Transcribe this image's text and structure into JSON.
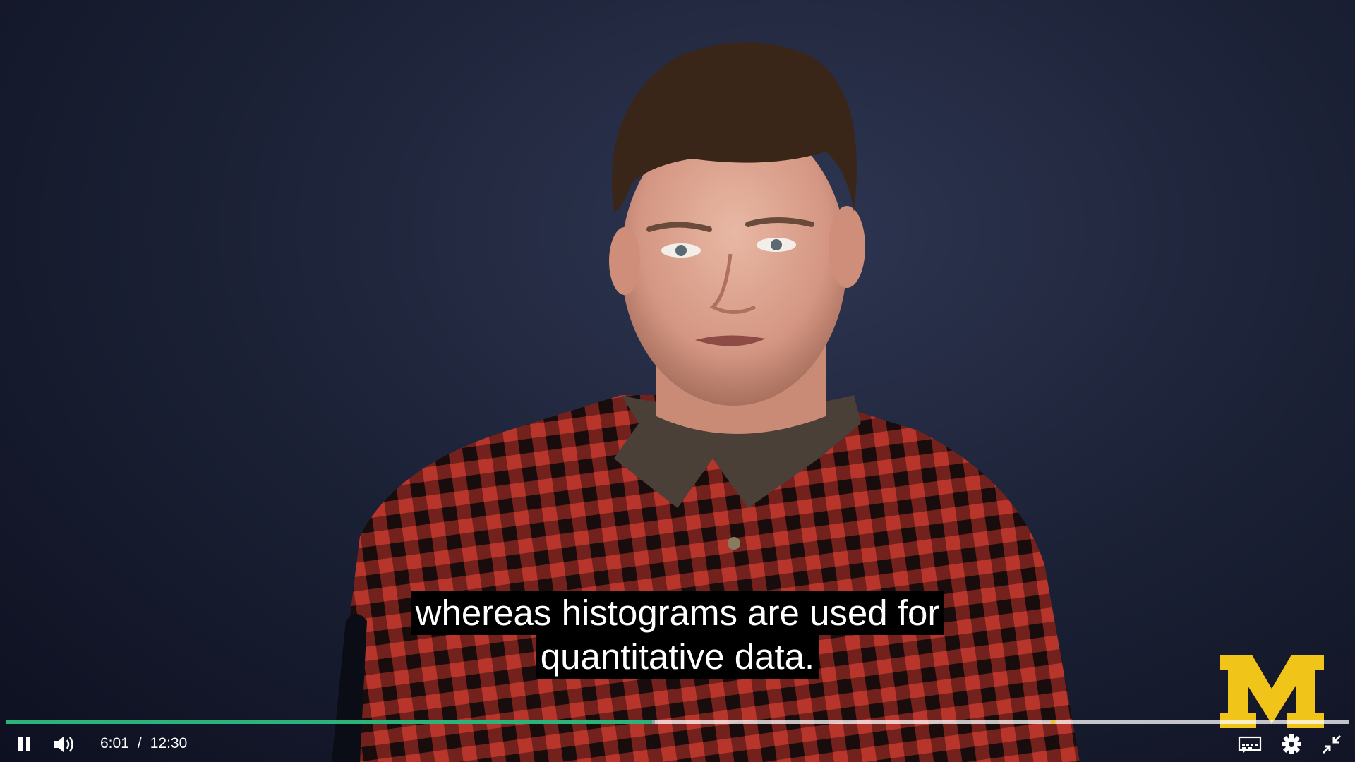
{
  "player": {
    "captions": [
      "whereas histograms are used for",
      "quantitative data."
    ],
    "current_time": "6:01",
    "time_separator": "/",
    "duration": "12:30",
    "progress_fraction": 0.481,
    "buffered_fraction": 0.483,
    "marker_fraction": 0.778,
    "colors": {
      "progress_played": "#2bb37a",
      "chapter_marker": "#f0c419",
      "logo_maize": "#f0c419"
    },
    "controls": {
      "play_pause_icon": "pause-icon",
      "volume_icon": "volume-icon",
      "captions_icon": "captions-icon",
      "settings_icon": "gear-icon",
      "fullscreen_icon": "exit-fullscreen-icon"
    },
    "logo": "M"
  }
}
